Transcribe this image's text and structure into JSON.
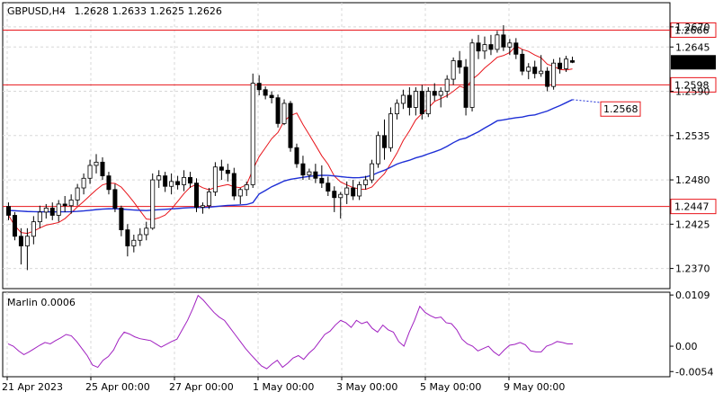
{
  "header": {
    "symbol": "GBPUSD,H4",
    "ohlc": "1.2628 1.2633 1.2625 1.2626"
  },
  "indicator": {
    "label": "Marlin 0.0006",
    "ticks": [
      "0.0109",
      "0.00",
      "-0.0054"
    ]
  },
  "colors": {
    "level_line": "#e8141a",
    "fast_ma": "#e8141a",
    "slow_ma": "#1e2fd6",
    "oscillator": "#a020c0",
    "candle_up": "#ffffff",
    "candle_down": "#000000"
  },
  "chart_data": {
    "type": "candlestick",
    "x_labels": [
      "21 Apr 2023",
      "25 Apr 00:00",
      "27 Apr 00:00",
      "1 May 00:00",
      "3 May 00:00",
      "5 May 00:00",
      "9 May 00:00"
    ],
    "price_ticks": [
      "1.2670",
      "1.2645",
      "1.2590",
      "1.2535",
      "1.2480",
      "1.2425",
      "1.2370"
    ],
    "ylim": [
      1.2345,
      1.27
    ],
    "levels": [
      {
        "value": "1.2666",
        "price": 1.2666
      },
      {
        "value": "1.2598",
        "price": 1.2598
      },
      {
        "value": "1.2447",
        "price": 1.2447
      }
    ],
    "current_price": "1.2626",
    "ma_label": "1.2568",
    "candles": [
      [
        1.2447,
        1.2452,
        1.243,
        1.2436
      ],
      [
        1.2436,
        1.244,
        1.2405,
        1.241
      ],
      [
        1.241,
        1.242,
        1.2375,
        1.2398
      ],
      [
        1.2398,
        1.242,
        1.2368,
        1.241
      ],
      [
        1.241,
        1.2435,
        1.24,
        1.2428
      ],
      [
        1.2428,
        1.2448,
        1.242,
        1.244
      ],
      [
        1.244,
        1.245,
        1.2432,
        1.2445
      ],
      [
        1.2445,
        1.2452,
        1.243,
        1.2436
      ],
      [
        1.2436,
        1.2455,
        1.2428,
        1.245
      ],
      [
        1.245,
        1.246,
        1.244,
        1.2448
      ],
      [
        1.2448,
        1.2462,
        1.2438,
        1.2455
      ],
      [
        1.2455,
        1.2475,
        1.2448,
        1.247
      ],
      [
        1.247,
        1.2488,
        1.2462,
        1.2482
      ],
      [
        1.2482,
        1.2505,
        1.2475,
        1.2498
      ],
      [
        1.2498,
        1.2512,
        1.2488,
        1.2502
      ],
      [
        1.2502,
        1.2508,
        1.248,
        1.2485
      ],
      [
        1.2485,
        1.249,
        1.2462,
        1.2468
      ],
      [
        1.2468,
        1.2475,
        1.244,
        1.2445
      ],
      [
        1.2445,
        1.2448,
        1.241,
        1.2418
      ],
      [
        1.2418,
        1.2425,
        1.2385,
        1.2398
      ],
      [
        1.2398,
        1.2412,
        1.239,
        1.2405
      ],
      [
        1.2405,
        1.242,
        1.2398,
        1.2412
      ],
      [
        1.2412,
        1.2428,
        1.2405,
        1.242
      ],
      [
        1.242,
        1.2488,
        1.2418,
        1.248
      ],
      [
        1.248,
        1.2492,
        1.247,
        1.2485
      ],
      [
        1.2485,
        1.249,
        1.2465,
        1.2472
      ],
      [
        1.2472,
        1.2488,
        1.2462,
        1.2478
      ],
      [
        1.2478,
        1.2485,
        1.2468,
        1.2474
      ],
      [
        1.2474,
        1.2492,
        1.2466,
        1.2483
      ],
      [
        1.2483,
        1.249,
        1.247,
        1.2476
      ],
      [
        1.2476,
        1.2482,
        1.244,
        1.2446
      ],
      [
        1.2446,
        1.2452,
        1.2438,
        1.2448
      ],
      [
        1.2448,
        1.247,
        1.2444,
        1.2465
      ],
      [
        1.2465,
        1.2502,
        1.246,
        1.2496
      ],
      [
        1.2496,
        1.2505,
        1.248,
        1.2492
      ],
      [
        1.2492,
        1.25,
        1.2478,
        1.2488
      ],
      [
        1.2488,
        1.2495,
        1.2455,
        1.246
      ],
      [
        1.246,
        1.247,
        1.245,
        1.2468
      ],
      [
        1.2468,
        1.2478,
        1.246,
        1.2474
      ],
      [
        1.2474,
        1.2612,
        1.247,
        1.26
      ],
      [
        1.26,
        1.261,
        1.2585,
        1.2592
      ],
      [
        1.2592,
        1.2596,
        1.258,
        1.2585
      ],
      [
        1.2585,
        1.259,
        1.2575,
        1.2582
      ],
      [
        1.2582,
        1.2586,
        1.2545,
        1.255
      ],
      [
        1.255,
        1.258,
        1.2548,
        1.2575
      ],
      [
        1.2575,
        1.2578,
        1.2515,
        1.252
      ],
      [
        1.252,
        1.2525,
        1.2495,
        1.25
      ],
      [
        1.25,
        1.251,
        1.248,
        1.2486
      ],
      [
        1.2486,
        1.2494,
        1.248,
        1.249
      ],
      [
        1.249,
        1.25,
        1.2476,
        1.2482
      ],
      [
        1.2482,
        1.2498,
        1.247,
        1.2476
      ],
      [
        1.2476,
        1.2484,
        1.246,
        1.2466
      ],
      [
        1.2466,
        1.2472,
        1.244,
        1.2458
      ],
      [
        1.2458,
        1.2465,
        1.2432,
        1.2462
      ],
      [
        1.2462,
        1.2478,
        1.245,
        1.247
      ],
      [
        1.247,
        1.248,
        1.2455,
        1.246
      ],
      [
        1.246,
        1.2478,
        1.2455,
        1.2474
      ],
      [
        1.2474,
        1.2485,
        1.2468,
        1.248
      ],
      [
        1.248,
        1.2505,
        1.2476,
        1.25
      ],
      [
        1.25,
        1.254,
        1.2495,
        1.2535
      ],
      [
        1.2535,
        1.2555,
        1.2505,
        1.252
      ],
      [
        1.252,
        1.257,
        1.2515,
        1.2562
      ],
      [
        1.2562,
        1.258,
        1.2555,
        1.2575
      ],
      [
        1.2575,
        1.2592,
        1.2568,
        1.2585
      ],
      [
        1.2585,
        1.2595,
        1.256,
        1.257
      ],
      [
        1.257,
        1.2595,
        1.256,
        1.259
      ],
      [
        1.259,
        1.2598,
        1.2555,
        1.2562
      ],
      [
        1.2562,
        1.2595,
        1.2558,
        1.259
      ],
      [
        1.259,
        1.26,
        1.2578,
        1.2585
      ],
      [
        1.2585,
        1.2595,
        1.257,
        1.259
      ],
      [
        1.259,
        1.261,
        1.2582,
        1.2605
      ],
      [
        1.2605,
        1.2632,
        1.2598,
        1.2628
      ],
      [
        1.2628,
        1.264,
        1.2612,
        1.262
      ],
      [
        1.262,
        1.263,
        1.256,
        1.257
      ],
      [
        1.257,
        1.2655,
        1.2565,
        1.265
      ],
      [
        1.265,
        1.266,
        1.263,
        1.264
      ],
      [
        1.264,
        1.2658,
        1.263,
        1.2648
      ],
      [
        1.2648,
        1.266,
        1.2635,
        1.2642
      ],
      [
        1.2642,
        1.2665,
        1.2638,
        1.266
      ],
      [
        1.266,
        1.2672,
        1.264,
        1.2645
      ],
      [
        1.2645,
        1.2655,
        1.2635,
        1.265
      ],
      [
        1.265,
        1.2656,
        1.263,
        1.2636
      ],
      [
        1.2636,
        1.2642,
        1.261,
        1.2615
      ],
      [
        1.2615,
        1.2625,
        1.2605,
        1.262
      ],
      [
        1.262,
        1.2628,
        1.2606,
        1.2612
      ],
      [
        1.2612,
        1.2635,
        1.2608,
        1.2615
      ],
      [
        1.2615,
        1.262,
        1.259,
        1.2596
      ],
      [
        1.2596,
        1.263,
        1.2592,
        1.2625
      ],
      [
        1.2625,
        1.2632,
        1.2612,
        1.2618
      ],
      [
        1.2618,
        1.2634,
        1.2614,
        1.263
      ],
      [
        1.2628,
        1.2633,
        1.2625,
        1.2626
      ]
    ],
    "oscillator": {
      "ylim": [
        -0.0065,
        0.0115
      ],
      "zero": 0.0,
      "values": [
        0.0005,
        0.0,
        -0.001,
        -0.0018,
        -0.0012,
        -0.0005,
        0.0002,
        0.0008,
        0.0005,
        0.0012,
        0.0018,
        0.0025,
        0.0022,
        0.001,
        -0.0005,
        -0.002,
        -0.004,
        -0.0045,
        -0.003,
        -0.0022,
        -0.0008,
        0.0015,
        0.003,
        0.0026,
        0.002,
        0.0016,
        0.0014,
        0.0012,
        0.0005,
        -0.0002,
        0.0004,
        0.001,
        0.0015,
        0.0035,
        0.0055,
        0.008,
        0.0108,
        0.0098,
        0.0085,
        0.0072,
        0.0062,
        0.0055,
        0.004,
        0.0025,
        0.001,
        -0.0005,
        -0.0018,
        -0.003,
        -0.0042,
        -0.0048,
        -0.0038,
        -0.003,
        -0.0045,
        -0.0036,
        -0.0025,
        -0.002,
        -0.0028,
        -0.0015,
        -0.0005,
        0.001,
        0.0025,
        0.0032,
        0.0045,
        0.0055,
        0.005,
        0.004,
        0.0055,
        0.0048,
        0.0052,
        0.0038,
        0.003,
        0.0045,
        0.0035,
        0.003,
        0.001,
        0.0,
        0.003,
        0.0055,
        0.0085,
        0.0072,
        0.0065,
        0.006,
        0.0062,
        0.005,
        0.0048,
        0.0035,
        0.0015,
        0.0005,
        0.0,
        -0.001,
        -0.0005,
        0.0,
        -0.0012,
        -0.002,
        -0.0008,
        0.0002,
        0.0004,
        0.0008,
        0.0003,
        -0.001,
        -0.0012,
        -0.0012,
        0.0,
        0.0004,
        0.001,
        0.0008,
        0.0005,
        0.0005
      ]
    }
  }
}
